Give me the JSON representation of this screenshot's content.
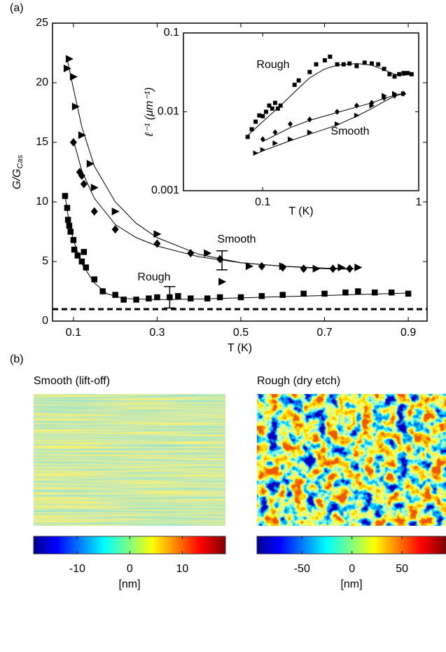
{
  "panel_labels": [
    "(a)",
    "(b)"
  ],
  "images": [
    {
      "title": "Smooth (lift-off)"
    },
    {
      "title": "Rough (dry etch)"
    }
  ],
  "chart_data": [
    {
      "type": "scatter",
      "xlabel": "T (K)",
      "ylabel": {
        "main": "G/G",
        "sub": "Cas"
      },
      "xlim": [
        0.05,
        0.945
      ],
      "ylim": [
        0,
        25
      ],
      "xticks": [
        0.1,
        0.3,
        0.5,
        0.7,
        0.9
      ],
      "yticks": [
        0,
        5,
        10,
        15,
        20,
        25
      ],
      "series": [
        {
          "marker": "triangle",
          "color": "#000000",
          "x": [
            0.085,
            0.09,
            0.1,
            0.105,
            0.12,
            0.14,
            0.15,
            0.2,
            0.3,
            0.42,
            0.455,
            0.52,
            0.6,
            0.68,
            0.74,
            0.78
          ],
          "values": [
            21.2,
            22,
            20.5,
            18,
            15.6,
            13.2,
            11.2,
            9.2,
            7.3,
            5.7,
            3.3,
            4.6,
            4.6,
            4.4,
            4.5,
            4.5
          ]
        },
        {
          "marker": "diamond",
          "color": "#000000",
          "x": [
            0.1,
            0.115,
            0.12,
            0.125,
            0.15,
            0.2,
            0.3,
            0.38,
            0.45,
            0.55,
            0.6,
            0.65,
            0.72,
            0.76
          ],
          "values": [
            15,
            12.5,
            12.2,
            11.5,
            9.2,
            7.7,
            6.5,
            5.7,
            5.2,
            4.6,
            4.5,
            4.4,
            4.4,
            4.4
          ]
        },
        {
          "marker": "square",
          "color": "#000000",
          "x": [
            0.08,
            0.085,
            0.087,
            0.09,
            0.093,
            0.1,
            0.102,
            0.11,
            0.12,
            0.125,
            0.13,
            0.15,
            0.17,
            0.2,
            0.22,
            0.25,
            0.28,
            0.3,
            0.33,
            0.35,
            0.38,
            0.42,
            0.45,
            0.5,
            0.55,
            0.6,
            0.65,
            0.7,
            0.75,
            0.78,
            0.82,
            0.86,
            0.9
          ],
          "values": [
            10.5,
            9.5,
            8.5,
            8,
            7.5,
            6.8,
            6,
            5.5,
            5,
            5.8,
            4.5,
            3.5,
            2.5,
            2.2,
            1.8,
            1.8,
            1.9,
            2,
            2,
            2.1,
            1.9,
            1.9,
            2,
            2,
            2.1,
            2.2,
            2.3,
            2.3,
            2.4,
            2.5,
            2.4,
            2.4,
            2.3
          ]
        }
      ],
      "fits": [
        {
          "x": [
            0.085,
            0.1,
            0.12,
            0.15,
            0.2,
            0.25,
            0.3,
            0.4,
            0.5,
            0.6,
            0.7,
            0.78
          ],
          "values": [
            22,
            19.5,
            16.3,
            13,
            10,
            8.2,
            7,
            5.6,
            4.9,
            4.6,
            4.45,
            4.4
          ]
        },
        {
          "x": [
            0.1,
            0.12,
            0.15,
            0.2,
            0.25,
            0.3,
            0.4,
            0.5,
            0.6,
            0.7,
            0.76
          ],
          "values": [
            15.2,
            12.6,
            10.3,
            8.1,
            7,
            6.3,
            5.4,
            4.9,
            4.6,
            4.4,
            4.35
          ]
        },
        {
          "x": [
            0.08,
            0.09,
            0.1,
            0.12,
            0.15,
            0.18,
            0.22,
            0.3,
            0.4,
            0.5,
            0.6,
            0.7,
            0.8,
            0.9
          ],
          "values": [
            10.5,
            8.2,
            6.8,
            4.8,
            3.2,
            2.3,
            1.9,
            1.8,
            1.85,
            1.95,
            2.05,
            2.15,
            2.25,
            2.35
          ]
        }
      ],
      "error_bars": [
        {
          "x": 0.33,
          "value": 2,
          "error": 0.9
        },
        {
          "x": 0.455,
          "value": 5.1,
          "error": 0.8
        }
      ],
      "reference_line": {
        "value": 1,
        "style": "dashed"
      },
      "annotations": [
        {
          "text": "Smooth"
        },
        {
          "text": "Rough"
        }
      ]
    },
    {
      "type": "scatter",
      "xscale": "log",
      "yscale": "log",
      "xlabel": "T (K)",
      "ylabel": {
        "main": "ℓ⁻¹ (μm⁻¹)"
      },
      "xlim": [
        0.031,
        1
      ],
      "ylim": [
        0.001,
        0.1
      ],
      "xticks": [
        0.1,
        1
      ],
      "yticks": [
        0.001,
        0.01,
        0.1
      ],
      "series": [
        {
          "marker": "square",
          "color": "#000000",
          "x": [
            0.08,
            0.085,
            0.09,
            0.095,
            0.1,
            0.105,
            0.11,
            0.115,
            0.12,
            0.125,
            0.13,
            0.16,
            0.17,
            0.2,
            0.22,
            0.25,
            0.27,
            0.3,
            0.33,
            0.36,
            0.4,
            0.45,
            0.5,
            0.55,
            0.6,
            0.65,
            0.7,
            0.75,
            0.8,
            0.85,
            0.9
          ],
          "values": [
            0.0048,
            0.006,
            0.0075,
            0.009,
            0.0088,
            0.01,
            0.012,
            0.011,
            0.013,
            0.011,
            0.012,
            0.022,
            0.025,
            0.032,
            0.04,
            0.045,
            0.05,
            0.04,
            0.04,
            0.041,
            0.038,
            0.042,
            0.041,
            0.04,
            0.035,
            0.03,
            0.028,
            0.03,
            0.031,
            0.031,
            0.03
          ]
        },
        {
          "marker": "diamond",
          "color": "#000000",
          "x": [
            0.1,
            0.12,
            0.15,
            0.2,
            0.3,
            0.4,
            0.5,
            0.6,
            0.7,
            0.8
          ],
          "values": [
            0.0045,
            0.0055,
            0.007,
            0.008,
            0.01,
            0.012,
            0.013,
            0.015,
            0.016,
            0.017
          ]
        },
        {
          "marker": "triangle",
          "color": "#000000",
          "x": [
            0.09,
            0.1,
            0.12,
            0.15,
            0.2,
            0.3,
            0.4,
            0.5,
            0.6,
            0.7,
            0.8
          ],
          "values": [
            0.003,
            0.0033,
            0.004,
            0.0045,
            0.0055,
            0.007,
            0.009,
            0.012,
            0.016,
            0.017,
            0.017
          ]
        }
      ],
      "fits": [
        {
          "x": [
            0.08,
            0.1,
            0.13,
            0.17,
            0.2,
            0.25,
            0.3,
            0.4,
            0.5,
            0.6,
            0.7,
            0.8,
            0.9
          ],
          "values": [
            0.005,
            0.0075,
            0.012,
            0.02,
            0.027,
            0.035,
            0.039,
            0.041,
            0.039,
            0.034,
            0.03,
            0.029,
            0.03
          ]
        },
        {
          "x": [
            0.1,
            0.15,
            0.2,
            0.3,
            0.4,
            0.5,
            0.6,
            0.7,
            0.8
          ],
          "values": [
            0.0042,
            0.0063,
            0.0078,
            0.0098,
            0.0115,
            0.013,
            0.0148,
            0.0162,
            0.0172
          ]
        },
        {
          "x": [
            0.09,
            0.1,
            0.15,
            0.2,
            0.3,
            0.4,
            0.5,
            0.6,
            0.7,
            0.8
          ],
          "values": [
            0.0029,
            0.0032,
            0.0043,
            0.0052,
            0.0068,
            0.0088,
            0.011,
            0.0135,
            0.0158,
            0.017
          ]
        }
      ],
      "annotations": [
        {
          "text": "Rough"
        },
        {
          "text": "Smooth"
        }
      ]
    },
    {
      "type": "colorbar",
      "xlim": [
        -18.3,
        18.2
      ],
      "xticks": [
        -10,
        0,
        10
      ],
      "xlabel": "[nm]"
    },
    {
      "type": "colorbar",
      "xlim": [
        -95,
        94
      ],
      "xticks": [
        -50,
        0,
        50
      ],
      "xlabel": "[nm]"
    }
  ]
}
